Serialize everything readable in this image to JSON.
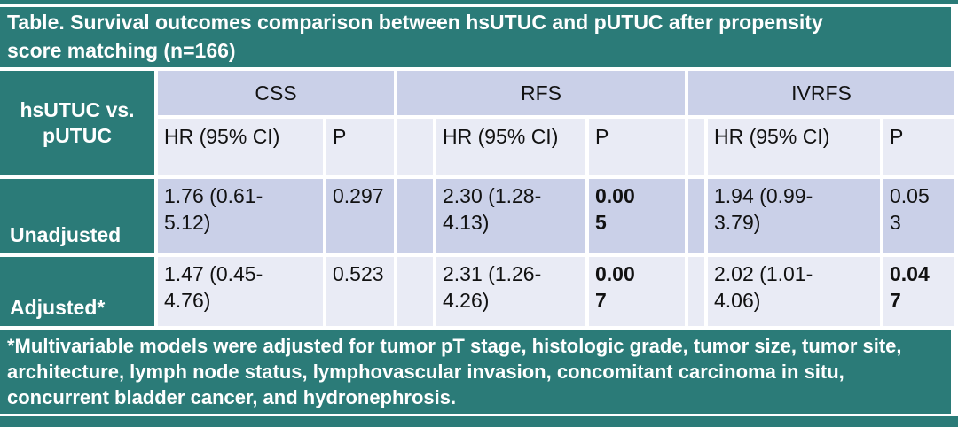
{
  "title": "Table. Survival outcomes comparison between hsUTUC and pUTUC after propensity score matching (n=166)",
  "colors": {
    "teal": "#2b7b78",
    "band_dark": "#cad0e8",
    "band_light": "#e9ebf5",
    "border_white": "#ffffff",
    "header_text": "#ffffff",
    "body_text": "#111111"
  },
  "table": {
    "row_header": "hsUTUC vs. pUTUC",
    "groups": [
      {
        "label": "CSS"
      },
      {
        "label": "RFS"
      },
      {
        "label": "IVRFS"
      }
    ],
    "sub_headers": {
      "hr": "HR (95% CI)",
      "p": "P"
    },
    "rows": [
      {
        "label": "Unadjusted",
        "css": {
          "hr": "1.76 (0.61-\n5.12)",
          "p": "0.297",
          "p_bold": false
        },
        "rfs": {
          "hr": "2.30 (1.28-\n4.13)",
          "p": "0.00\n5",
          "p_bold": true
        },
        "ivrfs": {
          "hr": "1.94 (0.99-\n3.79)",
          "p": "0.05\n3",
          "p_bold": false
        }
      },
      {
        "label": "Adjusted*",
        "css": {
          "hr": "1.47 (0.45-\n4.76)",
          "p": "0.523",
          "p_bold": false
        },
        "rfs": {
          "hr": "2.31 (1.26-\n4.26)",
          "p": "0.00\n7",
          "p_bold": true
        },
        "ivrfs": {
          "hr": "2.02 (1.01-\n4.06)",
          "p": "0.04\n7",
          "p_bold": true
        }
      }
    ]
  },
  "footnote": " *Multivariable models were adjusted for tumor pT stage, histologic grade, tumor size, tumor site, architecture, lymph node status, lymphovascular invasion, concomitant carcinoma in situ, concurrent bladder cancer, and hydronephrosis."
}
